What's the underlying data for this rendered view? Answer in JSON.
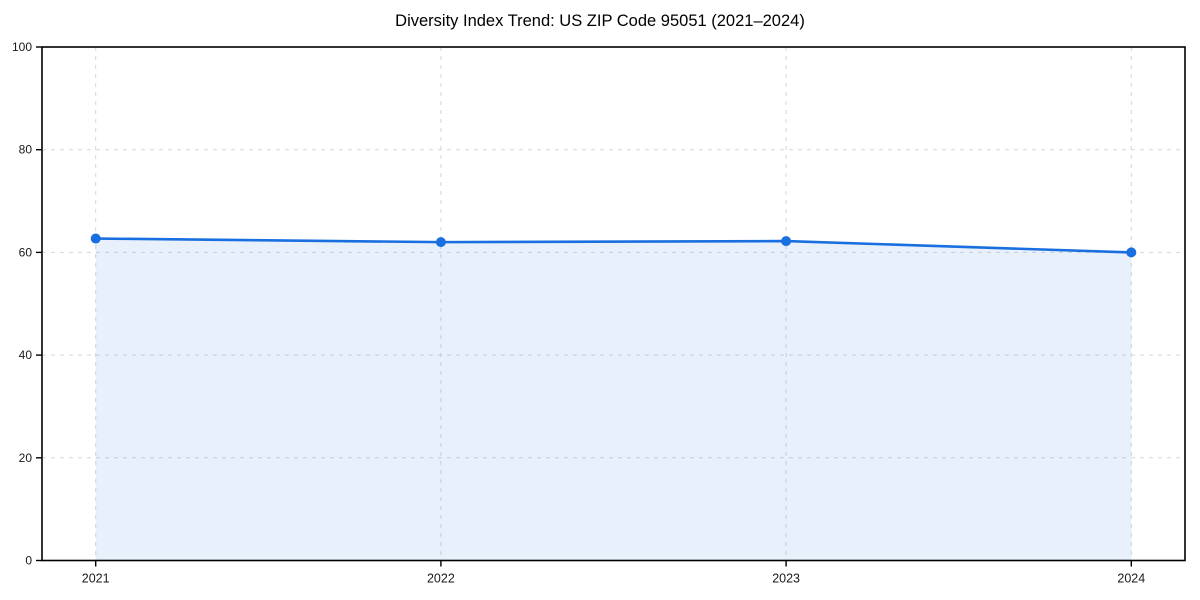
{
  "chart_data": {
    "type": "area",
    "title": "Diversity Index Trend: US ZIP Code 95051 (2021–2024)",
    "categories": [
      "2021",
      "2022",
      "2023",
      "2024"
    ],
    "x": [
      2021,
      2022,
      2023,
      2024
    ],
    "series": [
      {
        "name": "Diversity Index",
        "values": [
          62.7,
          62.0,
          62.2,
          60.0
        ]
      }
    ],
    "xlabel": "",
    "ylabel": "",
    "ylim": [
      0,
      100
    ],
    "yticks": [
      0,
      20,
      40,
      60,
      80,
      100
    ],
    "grid": true,
    "grid_style": "dashed",
    "legend_position": "none",
    "colors": {
      "line": "#1a6fe0",
      "marker": "#1a6fe0",
      "fill_opacity": 0.1,
      "grid": "#d6d6d6",
      "spine": "#000000",
      "tick_label": "#1a1a1a",
      "title": "#000000",
      "background": "#ffffff"
    }
  }
}
